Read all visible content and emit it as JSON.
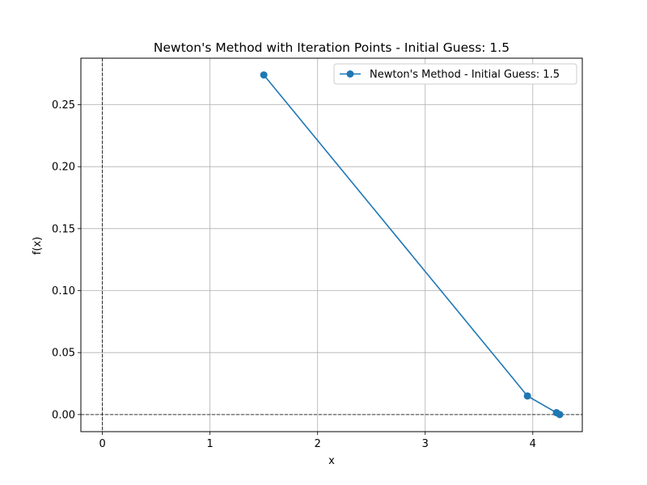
{
  "chart_data": {
    "type": "line",
    "title": "Newton's Method with Iteration Points - Initial Guess: 1.5",
    "xlabel": "x",
    "ylabel": "f(x)",
    "xlim": [
      -0.2,
      4.46
    ],
    "ylim": [
      -0.0138,
      0.2875
    ],
    "xticks": [
      0,
      1,
      2,
      3,
      4
    ],
    "yticks": [
      0.0,
      0.05,
      0.1,
      0.15,
      0.2,
      0.25
    ],
    "xtick_labels": [
      "0",
      "1",
      "2",
      "3",
      "4"
    ],
    "ytick_labels": [
      "0.00",
      "0.05",
      "0.10",
      "0.15",
      "0.20",
      "0.25"
    ],
    "grid": true,
    "legend_position": "top-right",
    "reference_lines": {
      "vertical_x": 0,
      "horizontal_y": 0
    },
    "series": [
      {
        "name": "Newton's Method - Initial Guess: 1.5",
        "color": "#1f77b4",
        "marker": "circle",
        "points": [
          {
            "x": 1.5,
            "y": 0.274
          },
          {
            "x": 3.95,
            "y": 0.015
          },
          {
            "x": 4.22,
            "y": 0.0015
          },
          {
            "x": 4.25,
            "y": 0.0
          }
        ]
      }
    ]
  }
}
